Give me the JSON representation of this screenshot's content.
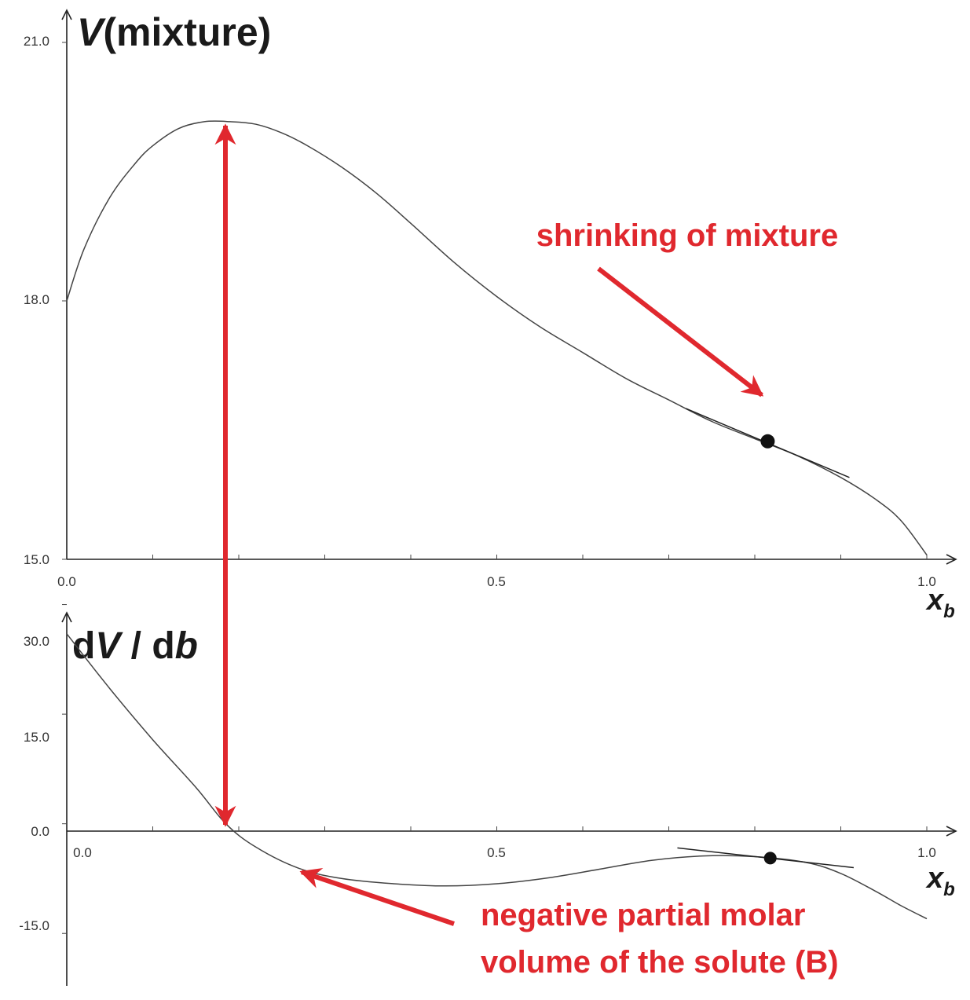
{
  "chart_data": [
    {
      "type": "line",
      "ylabel_prefix": "V",
      "ylabel_suffix": "(mixture)",
      "xlabel_main": "x",
      "xlabel_sub": "b",
      "xlim": [
        0,
        1
      ],
      "ylim": [
        15,
        21
      ],
      "x_ticks": [
        "0.0",
        "0.5",
        "1.0"
      ],
      "y_ticks": [
        "15.0",
        "18.0",
        "21.0"
      ],
      "curve": {
        "x": [
          0,
          0.02,
          0.05,
          0.08,
          0.1,
          0.13,
          0.16,
          0.19,
          0.22,
          0.25,
          0.28,
          0.32,
          0.36,
          0.4,
          0.45,
          0.5,
          0.55,
          0.6,
          0.65,
          0.7,
          0.75,
          0.8,
          0.85,
          0.9,
          0.94,
          0.97,
          1.0
        ],
        "y": [
          18.0,
          18.6,
          19.2,
          19.6,
          19.8,
          20.0,
          20.08,
          20.08,
          20.05,
          19.95,
          19.8,
          19.55,
          19.25,
          18.9,
          18.45,
          18.05,
          17.7,
          17.4,
          17.1,
          16.85,
          16.6,
          16.4,
          16.2,
          15.95,
          15.7,
          15.45,
          15.05
        ]
      },
      "point": {
        "x": 0.815,
        "y": 16.37
      },
      "tangent": {
        "x1": 0.72,
        "y1": 16.75,
        "x2": 0.91,
        "y2": 15.95
      },
      "annotation": "shrinking of mixture"
    },
    {
      "type": "line",
      "ylabel_d1": "d",
      "ylabel_v": "V",
      "ylabel_slash": " / d",
      "ylabel_b": "b",
      "xlabel_main": "x",
      "xlabel_sub": "b",
      "xlim": [
        0,
        1
      ],
      "ylim": [
        -22.5,
        33.5
      ],
      "x_ticks": [
        "0.0",
        "0.5",
        "1.0"
      ],
      "y_ticks": [
        "-15.0",
        "0.0",
        "15.0",
        "30.0"
      ],
      "curve": {
        "x": [
          0,
          0.05,
          0.1,
          0.15,
          0.185,
          0.22,
          0.27,
          0.32,
          0.38,
          0.44,
          0.5,
          0.56,
          0.62,
          0.68,
          0.74,
          0.8,
          0.86,
          0.9,
          0.94,
          0.97,
          1.0
        ],
        "y": [
          26.0,
          18.5,
          11.5,
          5.0,
          0.0,
          -3.2,
          -6.1,
          -7.5,
          -8.2,
          -8.5,
          -8.2,
          -7.4,
          -6.2,
          -5.0,
          -4.4,
          -4.5,
          -5.3,
          -6.8,
          -9.2,
          -11.2,
          -13.0
        ]
      },
      "point": {
        "x": 0.818,
        "y": -4.7
      },
      "tangent": {
        "x1": 0.71,
        "y1": -3.3,
        "x2": 0.915,
        "y2": -6.0
      },
      "annotation_line1": "negative partial molar",
      "annotation_line2": "volume of the solute (B)"
    }
  ]
}
